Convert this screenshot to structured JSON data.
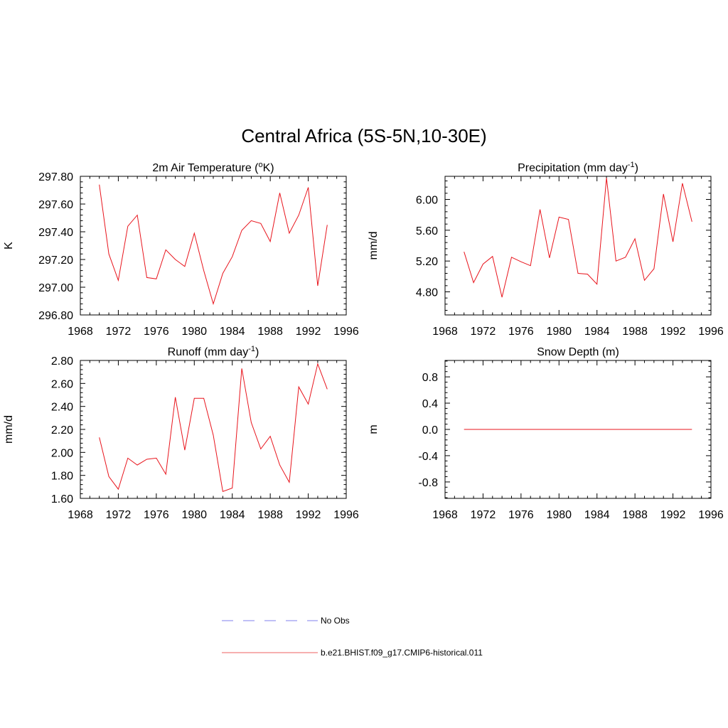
{
  "figure_title": "Central Africa (5S-5N,10-30E)",
  "colors": {
    "model": "#e8141c",
    "obs": "#9a9af0",
    "axis": "#000000"
  },
  "legend": [
    {
      "label": "No Obs",
      "style": "dashed",
      "color": "#9a9af0"
    },
    {
      "label": "b.e21.BHIST.f09_g17.CMIP6-historical.011",
      "style": "solid",
      "color": "#f08080"
    }
  ],
  "chart_data": [
    {
      "type": "line",
      "title": "2m Air Temperature (",
      "title_sup": "o",
      "title_tail": "K)",
      "ylabel": "K",
      "xlim": [
        1968,
        1996
      ],
      "ylim": [
        296.8,
        297.8
      ],
      "xticks": [
        1968,
        1972,
        1976,
        1980,
        1984,
        1988,
        1992,
        1996
      ],
      "yticks": [
        "296.80",
        "297.00",
        "297.20",
        "297.40",
        "297.60",
        "297.80"
      ],
      "grid": false,
      "x": [
        1970,
        1971,
        1972,
        1973,
        1974,
        1975,
        1976,
        1977,
        1978,
        1979,
        1980,
        1981,
        1982,
        1983,
        1984,
        1985,
        1986,
        1987,
        1988,
        1989,
        1990,
        1991,
        1992,
        1993,
        1994
      ],
      "series": [
        {
          "values": [
            297.74,
            297.24,
            297.05,
            297.44,
            297.52,
            297.07,
            297.06,
            297.27,
            297.2,
            297.15,
            297.39,
            297.12,
            296.88,
            297.1,
            297.22,
            297.41,
            297.48,
            297.46,
            297.33,
            297.68,
            297.39,
            297.52,
            297.72,
            297.01,
            297.45
          ]
        }
      ]
    },
    {
      "type": "line",
      "title": "Precipitation (mm day",
      "title_sup": "-1",
      "title_tail": ")",
      "ylabel": "mm/d",
      "xlim": [
        1968,
        1996
      ],
      "ylim": [
        4.5,
        6.3
      ],
      "xticks": [
        1968,
        1972,
        1976,
        1980,
        1984,
        1988,
        1992,
        1996
      ],
      "yticks": [
        "4.80",
        "5.20",
        "5.60",
        "6.00"
      ],
      "grid": false,
      "x": [
        1970,
        1971,
        1972,
        1973,
        1974,
        1975,
        1976,
        1977,
        1978,
        1979,
        1980,
        1981,
        1982,
        1983,
        1984,
        1985,
        1986,
        1987,
        1988,
        1989,
        1990,
        1991,
        1992,
        1993,
        1994
      ],
      "series": [
        {
          "values": [
            5.32,
            4.92,
            5.16,
            5.26,
            4.73,
            5.25,
            5.19,
            5.14,
            5.87,
            5.24,
            5.77,
            5.74,
            5.04,
            5.03,
            4.9,
            6.28,
            5.2,
            5.25,
            5.49,
            4.95,
            5.1,
            6.07,
            5.45,
            6.21,
            5.71
          ]
        }
      ]
    },
    {
      "type": "line",
      "title": "Runoff (mm day",
      "title_sup": "-1",
      "title_tail": ")",
      "ylabel": "mm/d",
      "xlim": [
        1968,
        1996
      ],
      "ylim": [
        1.6,
        2.8
      ],
      "xticks": [
        1968,
        1972,
        1976,
        1980,
        1984,
        1988,
        1992,
        1996
      ],
      "yticks": [
        "1.60",
        "1.80",
        "2.00",
        "2.20",
        "2.40",
        "2.60",
        "2.80"
      ],
      "grid": false,
      "x": [
        1970,
        1971,
        1972,
        1973,
        1974,
        1975,
        1976,
        1977,
        1978,
        1979,
        1980,
        1981,
        1982,
        1983,
        1984,
        1985,
        1986,
        1987,
        1988,
        1989,
        1990,
        1991,
        1992,
        1993,
        1994
      ],
      "series": [
        {
          "values": [
            2.13,
            1.79,
            1.68,
            1.95,
            1.89,
            1.94,
            1.95,
            1.81,
            2.48,
            2.02,
            2.47,
            2.47,
            2.15,
            1.66,
            1.69,
            2.73,
            2.26,
            2.03,
            2.14,
            1.89,
            1.74,
            2.57,
            2.42,
            2.77,
            2.55
          ]
        }
      ]
    },
    {
      "type": "line",
      "title": "Snow Depth (m)",
      "title_sup": "",
      "title_tail": "",
      "ylabel": "m",
      "xlim": [
        1968,
        1996
      ],
      "ylim": [
        -1.05,
        1.05
      ],
      "xticks": [
        1968,
        1972,
        1976,
        1980,
        1984,
        1988,
        1992,
        1996
      ],
      "yticks": [
        "-0.8",
        "-0.4",
        "0.0",
        "0.4",
        "0.8"
      ],
      "grid": false,
      "x": [
        1970,
        1971,
        1972,
        1973,
        1974,
        1975,
        1976,
        1977,
        1978,
        1979,
        1980,
        1981,
        1982,
        1983,
        1984,
        1985,
        1986,
        1987,
        1988,
        1989,
        1990,
        1991,
        1992,
        1993,
        1994
      ],
      "series": [
        {
          "values": [
            0,
            0,
            0,
            0,
            0,
            0,
            0,
            0,
            0,
            0,
            0,
            0,
            0,
            0,
            0,
            0,
            0,
            0,
            0,
            0,
            0,
            0,
            0,
            0,
            0
          ]
        }
      ]
    }
  ]
}
